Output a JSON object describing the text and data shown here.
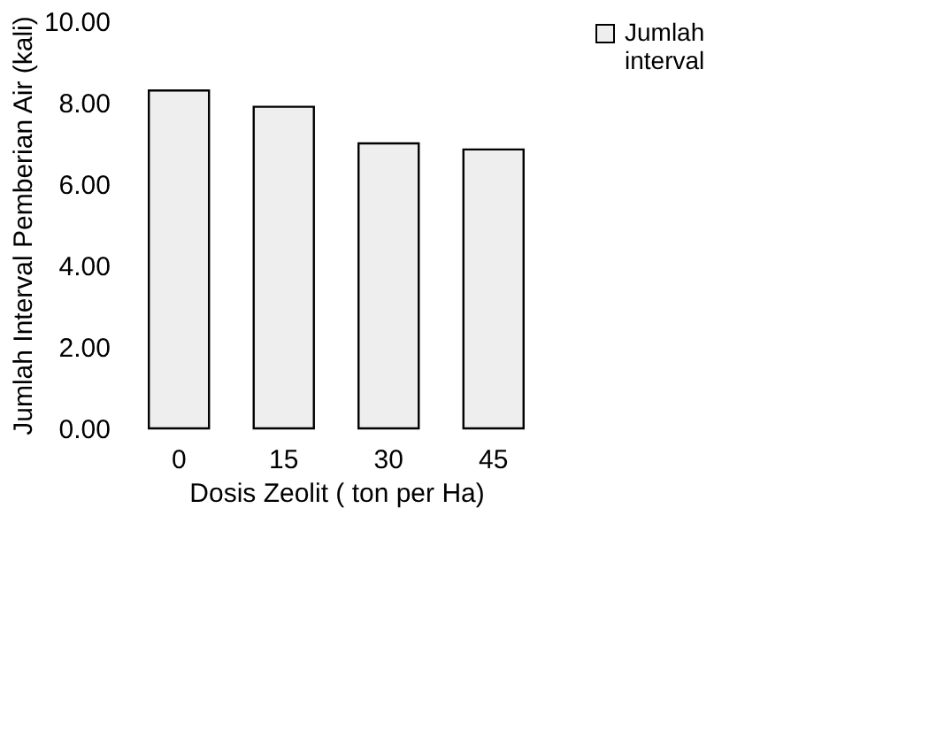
{
  "chart_data": {
    "type": "bar",
    "xlabel": "Dosis Zeolit ( ton per Ha)",
    "ylabel": "Jumlah Interval Pemberian Air (kali)",
    "categories": [
      "0",
      "15",
      "30",
      "45"
    ],
    "series": [
      {
        "name": "Jumlah interval",
        "color": "#eeeeee",
        "values": [
          8.3,
          7.9,
          7.0,
          6.85
        ]
      }
    ],
    "ylim": [
      0,
      10
    ],
    "yticks": [
      {
        "value": 0,
        "label": "0.00"
      },
      {
        "value": 2,
        "label": "2.00"
      },
      {
        "value": 4,
        "label": "4.00"
      },
      {
        "value": 6,
        "label": "6.00"
      },
      {
        "value": 8,
        "label": "8.00"
      },
      {
        "value": 10,
        "label": "10.00"
      }
    ],
    "grid": false,
    "legend": "right"
  }
}
